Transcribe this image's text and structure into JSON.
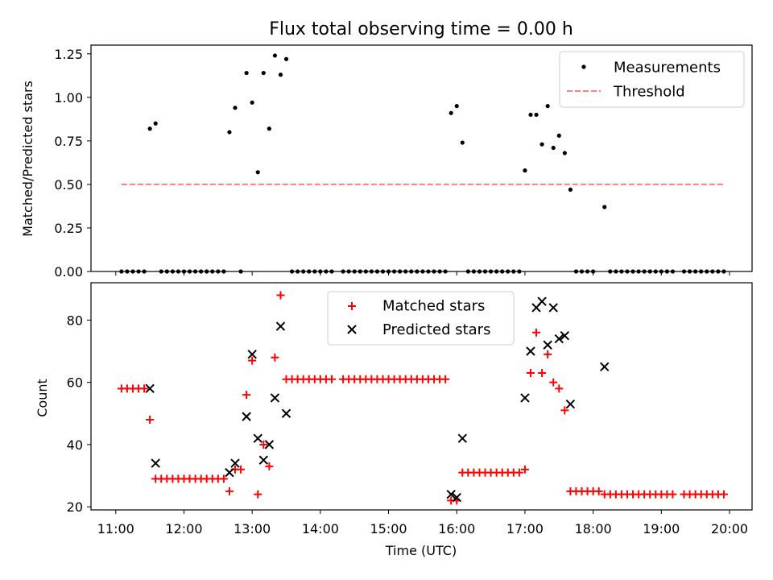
{
  "figure": {
    "title": "Flux total observing time = 0.00 h"
  },
  "chart_data": [
    {
      "type": "scatter",
      "ylabel": "Matched/Predicted stars",
      "xlim": [
        "11:00",
        "20:00"
      ],
      "ylim": [
        0,
        1.3
      ],
      "yticks": [
        "0.00",
        "0.25",
        "0.50",
        "0.75",
        "1.00",
        "1.25"
      ],
      "grid": false,
      "legend": "top-right",
      "series": [
        {
          "name": "Measurements",
          "marker": "dot",
          "color": "#000000",
          "points": [
            [
              "11:05",
              0
            ],
            [
              "11:10",
              0
            ],
            [
              "11:15",
              0
            ],
            [
              "11:20",
              0
            ],
            [
              "11:25",
              0
            ],
            [
              "11:30",
              0.82
            ],
            [
              "11:35",
              0.85
            ],
            [
              "11:40",
              0
            ],
            [
              "11:45",
              0
            ],
            [
              "11:50",
              0
            ],
            [
              "11:55",
              0
            ],
            [
              "12:00",
              0
            ],
            [
              "12:05",
              0
            ],
            [
              "12:10",
              0
            ],
            [
              "12:15",
              0
            ],
            [
              "12:20",
              0
            ],
            [
              "12:25",
              0
            ],
            [
              "12:30",
              0
            ],
            [
              "12:35",
              0
            ],
            [
              "12:40",
              0.8
            ],
            [
              "12:45",
              0.94
            ],
            [
              "12:50",
              0
            ],
            [
              "12:55",
              1.14
            ],
            [
              "13:00",
              0.97
            ],
            [
              "13:05",
              0.57
            ],
            [
              "13:10",
              1.14
            ],
            [
              "13:15",
              0.82
            ],
            [
              "13:20",
              1.24
            ],
            [
              "13:25",
              1.13
            ],
            [
              "13:30",
              1.22
            ],
            [
              "13:35",
              0
            ],
            [
              "13:40",
              0
            ],
            [
              "13:45",
              0
            ],
            [
              "13:50",
              0
            ],
            [
              "13:55",
              0
            ],
            [
              "14:00",
              0
            ],
            [
              "14:05",
              0
            ],
            [
              "14:10",
              0
            ],
            [
              "14:20",
              0
            ],
            [
              "14:25",
              0
            ],
            [
              "14:30",
              0
            ],
            [
              "14:35",
              0
            ],
            [
              "14:40",
              0
            ],
            [
              "14:45",
              0
            ],
            [
              "14:50",
              0
            ],
            [
              "14:55",
              0
            ],
            [
              "15:00",
              0
            ],
            [
              "15:05",
              0
            ],
            [
              "15:10",
              0
            ],
            [
              "15:15",
              0
            ],
            [
              "15:20",
              0
            ],
            [
              "15:25",
              0
            ],
            [
              "15:30",
              0
            ],
            [
              "15:35",
              0
            ],
            [
              "15:40",
              0
            ],
            [
              "15:45",
              0
            ],
            [
              "15:50",
              0
            ],
            [
              "15:55",
              0.91
            ],
            [
              "16:00",
              0.95
            ],
            [
              "16:05",
              0.74
            ],
            [
              "16:10",
              0
            ],
            [
              "16:15",
              0
            ],
            [
              "16:20",
              0
            ],
            [
              "16:25",
              0
            ],
            [
              "16:30",
              0
            ],
            [
              "16:35",
              0
            ],
            [
              "16:40",
              0
            ],
            [
              "16:45",
              0
            ],
            [
              "16:50",
              0
            ],
            [
              "16:55",
              0
            ],
            [
              "17:00",
              0.58
            ],
            [
              "17:05",
              0.9
            ],
            [
              "17:10",
              0.9
            ],
            [
              "17:15",
              0.73
            ],
            [
              "17:20",
              0.95
            ],
            [
              "17:25",
              0.71
            ],
            [
              "17:30",
              0.78
            ],
            [
              "17:35",
              0.68
            ],
            [
              "17:40",
              0.47
            ],
            [
              "17:45",
              0
            ],
            [
              "17:50",
              0
            ],
            [
              "17:55",
              0
            ],
            [
              "18:00",
              0
            ],
            [
              "18:10",
              0.37
            ],
            [
              "18:15",
              0
            ],
            [
              "18:20",
              0
            ],
            [
              "18:25",
              0
            ],
            [
              "18:30",
              0
            ],
            [
              "18:35",
              0
            ],
            [
              "18:40",
              0
            ],
            [
              "18:45",
              0
            ],
            [
              "18:50",
              0
            ],
            [
              "18:55",
              0
            ],
            [
              "19:00",
              0
            ],
            [
              "19:05",
              0
            ],
            [
              "19:10",
              0
            ],
            [
              "19:20",
              0
            ],
            [
              "19:25",
              0
            ],
            [
              "19:30",
              0
            ],
            [
              "19:35",
              0
            ],
            [
              "19:40",
              0
            ],
            [
              "19:45",
              0
            ],
            [
              "19:50",
              0
            ],
            [
              "19:55",
              0
            ]
          ]
        },
        {
          "name": "Threshold",
          "line": "dashed",
          "color": "#ff7f7f",
          "points": [
            [
              "11:05",
              0.5
            ],
            [
              "19:55",
              0.5
            ]
          ]
        }
      ]
    },
    {
      "type": "scatter",
      "xlabel": "Time (UTC)",
      "ylabel": "Count",
      "xlim": [
        "11:00",
        "20:00"
      ],
      "xticks": [
        "11:00",
        "12:00",
        "13:00",
        "14:00",
        "15:00",
        "16:00",
        "17:00",
        "18:00",
        "19:00",
        "20:00"
      ],
      "ylim": [
        19,
        92
      ],
      "yticks": [
        "20",
        "40",
        "60",
        "80"
      ],
      "grid": false,
      "legend": "top-center",
      "series": [
        {
          "name": "Matched stars",
          "marker": "plus",
          "color": "#ff0000",
          "points": [
            [
              "11:05",
              58
            ],
            [
              "11:10",
              58
            ],
            [
              "11:15",
              58
            ],
            [
              "11:20",
              58
            ],
            [
              "11:25",
              58
            ],
            [
              "11:30",
              48
            ],
            [
              "11:35",
              29
            ],
            [
              "11:40",
              29
            ],
            [
              "11:45",
              29
            ],
            [
              "11:50",
              29
            ],
            [
              "11:55",
              29
            ],
            [
              "12:00",
              29
            ],
            [
              "12:05",
              29
            ],
            [
              "12:10",
              29
            ],
            [
              "12:15",
              29
            ],
            [
              "12:20",
              29
            ],
            [
              "12:25",
              29
            ],
            [
              "12:30",
              29
            ],
            [
              "12:35",
              29
            ],
            [
              "12:40",
              25
            ],
            [
              "12:45",
              32
            ],
            [
              "12:50",
              32
            ],
            [
              "12:55",
              56
            ],
            [
              "13:00",
              67
            ],
            [
              "13:05",
              24
            ],
            [
              "13:10",
              40
            ],
            [
              "13:15",
              33
            ],
            [
              "13:20",
              68
            ],
            [
              "13:25",
              88
            ],
            [
              "13:30",
              61
            ],
            [
              "13:35",
              61
            ],
            [
              "13:40",
              61
            ],
            [
              "13:45",
              61
            ],
            [
              "13:50",
              61
            ],
            [
              "13:55",
              61
            ],
            [
              "14:00",
              61
            ],
            [
              "14:05",
              61
            ],
            [
              "14:10",
              61
            ],
            [
              "14:20",
              61
            ],
            [
              "14:25",
              61
            ],
            [
              "14:30",
              61
            ],
            [
              "14:35",
              61
            ],
            [
              "14:40",
              61
            ],
            [
              "14:45",
              61
            ],
            [
              "14:50",
              61
            ],
            [
              "14:55",
              61
            ],
            [
              "15:00",
              61
            ],
            [
              "15:05",
              61
            ],
            [
              "15:10",
              61
            ],
            [
              "15:15",
              61
            ],
            [
              "15:20",
              61
            ],
            [
              "15:25",
              61
            ],
            [
              "15:30",
              61
            ],
            [
              "15:35",
              61
            ],
            [
              "15:40",
              61
            ],
            [
              "15:45",
              61
            ],
            [
              "15:50",
              61
            ],
            [
              "15:55",
              22
            ],
            [
              "16:00",
              22
            ],
            [
              "16:05",
              31
            ],
            [
              "16:10",
              31
            ],
            [
              "16:15",
              31
            ],
            [
              "16:20",
              31
            ],
            [
              "16:25",
              31
            ],
            [
              "16:30",
              31
            ],
            [
              "16:35",
              31
            ],
            [
              "16:40",
              31
            ],
            [
              "16:45",
              31
            ],
            [
              "16:50",
              31
            ],
            [
              "16:55",
              31
            ],
            [
              "17:00",
              32
            ],
            [
              "17:05",
              63
            ],
            [
              "17:10",
              76
            ],
            [
              "17:15",
              63
            ],
            [
              "17:20",
              69
            ],
            [
              "17:25",
              60
            ],
            [
              "17:30",
              58
            ],
            [
              "17:35",
              51
            ],
            [
              "17:40",
              25
            ],
            [
              "17:45",
              25
            ],
            [
              "17:50",
              25
            ],
            [
              "17:55",
              25
            ],
            [
              "18:00",
              25
            ],
            [
              "18:05",
              25
            ],
            [
              "18:10",
              24
            ],
            [
              "18:15",
              24
            ],
            [
              "18:20",
              24
            ],
            [
              "18:25",
              24
            ],
            [
              "18:30",
              24
            ],
            [
              "18:35",
              24
            ],
            [
              "18:40",
              24
            ],
            [
              "18:45",
              24
            ],
            [
              "18:50",
              24
            ],
            [
              "18:55",
              24
            ],
            [
              "19:00",
              24
            ],
            [
              "19:05",
              24
            ],
            [
              "19:10",
              24
            ],
            [
              "19:20",
              24
            ],
            [
              "19:25",
              24
            ],
            [
              "19:30",
              24
            ],
            [
              "19:35",
              24
            ],
            [
              "19:40",
              24
            ],
            [
              "19:45",
              24
            ],
            [
              "19:50",
              24
            ],
            [
              "19:55",
              24
            ]
          ]
        },
        {
          "name": "Predicted stars",
          "marker": "x",
          "color": "#000000",
          "points": [
            [
              "11:30",
              58
            ],
            [
              "11:35",
              34
            ],
            [
              "12:40",
              31
            ],
            [
              "12:45",
              34
            ],
            [
              "12:55",
              49
            ],
            [
              "13:00",
              69
            ],
            [
              "13:05",
              42
            ],
            [
              "13:10",
              35
            ],
            [
              "13:15",
              40
            ],
            [
              "13:20",
              55
            ],
            [
              "13:25",
              78
            ],
            [
              "13:30",
              50
            ],
            [
              "15:55",
              24
            ],
            [
              "16:00",
              23
            ],
            [
              "16:05",
              42
            ],
            [
              "17:00",
              55
            ],
            [
              "17:05",
              70
            ],
            [
              "17:10",
              84
            ],
            [
              "17:15",
              86
            ],
            [
              "17:20",
              72
            ],
            [
              "17:25",
              84
            ],
            [
              "17:30",
              74
            ],
            [
              "17:35",
              75
            ],
            [
              "17:40",
              53
            ],
            [
              "18:10",
              65
            ]
          ]
        }
      ]
    }
  ]
}
